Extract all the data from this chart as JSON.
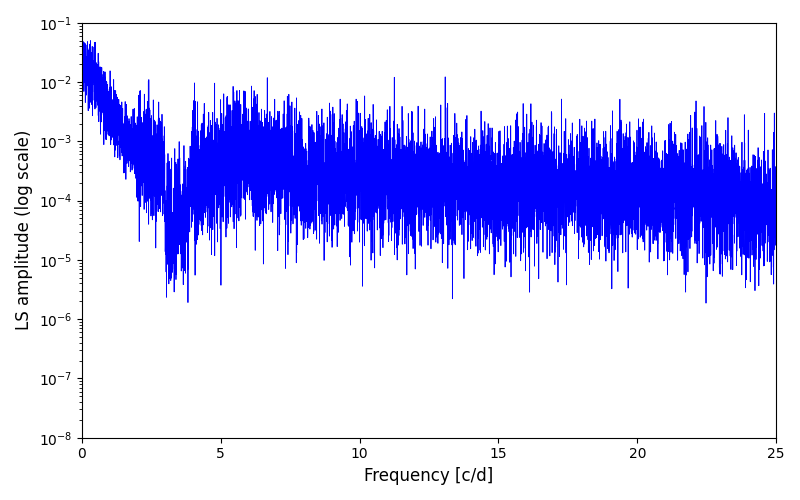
{
  "title": "",
  "xlabel": "Frequency [c/d]",
  "ylabel": "LS amplitude (log scale)",
  "xlim": [
    0,
    25
  ],
  "ylim": [
    1e-08,
    0.1
  ],
  "line_color": "#0000ff",
  "line_width": 0.6,
  "figsize": [
    8.0,
    5.0
  ],
  "dpi": 100,
  "seed": 12345,
  "n_points": 8000,
  "freq_max": 25.0,
  "background_color": "#ffffff"
}
